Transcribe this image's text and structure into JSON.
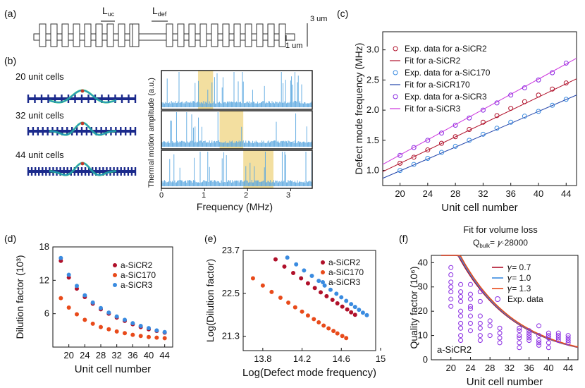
{
  "panels": {
    "a": {
      "label": "(a)",
      "luc": "L",
      "luc_sub": "uc",
      "ldef": "L",
      "ldef_sub": "def",
      "dim_3": "3 um",
      "dim_1": "1 um"
    },
    "b": {
      "label": "(b)",
      "rows": [
        {
          "label": "20 unit cells",
          "band": [
            0.85,
            1.2
          ]
        },
        {
          "label": "32 unit cells",
          "band": [
            1.35,
            1.9
          ]
        },
        {
          "label": "44 unit cells",
          "band": [
            1.9,
            2.6
          ]
        }
      ],
      "ylabel": "Thermal motion amplitude (a.u.)",
      "xlabel": "Frequency (MHz)",
      "xticks": [
        "0",
        "1",
        "2",
        "3"
      ]
    }
  },
  "colors": {
    "sicr2": "#b0102a",
    "sic170": "#e84a1a",
    "sicr3": "#3a8be0",
    "band": "#f3dfa0",
    "noise": "#5aa7e0",
    "vol": "#8a2be2"
  },
  "chart_data": [
    {
      "panel": "(c)",
      "type": "scatter",
      "xlabel": "Unit cell number",
      "ylabel": "Defect mode frequency (MHz)",
      "xlim": [
        17.5,
        45.5
      ],
      "ylim": [
        0.75,
        3.3
      ],
      "xticks": [
        20,
        24,
        28,
        32,
        36,
        40,
        44
      ],
      "yticks": [
        1.0,
        1.5,
        2.0,
        2.5,
        3.0
      ],
      "ytick_labels": [
        "1.0",
        "1.5",
        "2.0",
        "2.5",
        "3.0"
      ],
      "x": [
        20,
        22,
        24,
        26,
        28,
        30,
        32,
        34,
        36,
        38,
        40,
        42,
        44
      ],
      "series": [
        {
          "name": "a-SiCR2",
          "color": "#b0102a",
          "values": [
            1.12,
            1.22,
            1.34,
            1.45,
            1.56,
            1.68,
            1.8,
            1.91,
            2.03,
            2.14,
            2.25,
            2.35,
            2.45
          ]
        },
        {
          "name": "a-SiC170",
          "color": "#3a8be0",
          "values": [
            1.0,
            1.1,
            1.2,
            1.3,
            1.4,
            1.5,
            1.6,
            1.7,
            1.8,
            1.9,
            1.98,
            2.08,
            2.18
          ]
        },
        {
          "name": "a-SiCR3",
          "color": "#8a2be2",
          "values": [
            1.25,
            1.38,
            1.5,
            1.62,
            1.75,
            1.87,
            2.0,
            2.12,
            2.25,
            2.37,
            2.5,
            2.62,
            2.78
          ]
        }
      ],
      "fits": [
        {
          "name": "a-SiCR2",
          "color": "#b0102a",
          "x0": 17.5,
          "y0": 0.98,
          "x1": 45.5,
          "y1": 2.52
        },
        {
          "name": "a-SiC170",
          "color": "#2244aa",
          "x0": 17.5,
          "y0": 0.87,
          "x1": 45.5,
          "y1": 2.25
        },
        {
          "name": "a-SiCR3",
          "color": "#cc33dd",
          "x0": 17.5,
          "y0": 1.1,
          "x1": 45.5,
          "y1": 2.86
        }
      ],
      "legend": [
        "Exp. data for a-SiCR2",
        "Fit for a-SiCR2",
        "Exp. data for a-SiC170",
        "Fit for a-SiCR170",
        "Exp. data for a-SiCR3",
        "Fit for a-SiCR3"
      ]
    },
    {
      "panel": "(d)",
      "type": "scatter",
      "xlabel": "Unit cell number",
      "ylabel": "Dilution factor (10³)",
      "xlim": [
        16,
        46
      ],
      "ylim": [
        0,
        18
      ],
      "xticks": [
        20,
        24,
        28,
        32,
        36,
        40,
        44
      ],
      "yticks": [
        6,
        12,
        18
      ],
      "x": [
        18,
        20,
        22,
        24,
        26,
        28,
        30,
        32,
        34,
        36,
        38,
        40,
        42,
        44
      ],
      "series": [
        {
          "name": "a-SiCR2",
          "color": "#b0102a",
          "values": [
            15.5,
            12.5,
            10.5,
            9.0,
            7.8,
            6.8,
            6.0,
            5.3,
            4.7,
            4.1,
            3.6,
            3.2,
            2.9,
            2.6
          ]
        },
        {
          "name": "a-SiC170",
          "color": "#e84a1a",
          "values": [
            8.8,
            7.1,
            5.9,
            4.9,
            4.2,
            3.6,
            3.2,
            2.8,
            2.5,
            2.2,
            2.0,
            1.8,
            1.7,
            1.6
          ]
        },
        {
          "name": "a-SiCR3",
          "color": "#3a8be0",
          "values": [
            16.0,
            13.0,
            11.0,
            9.3,
            8.0,
            7.0,
            6.2,
            5.5,
            4.9,
            4.3,
            3.8,
            3.4,
            3.0,
            2.7
          ]
        }
      ],
      "legend": [
        "a-SiCR2",
        "a-SiC170",
        "a-SiCR3"
      ]
    },
    {
      "panel": "(e)",
      "type": "scatter",
      "xlabel": "Log(Defect mode frequency)",
      "ylabel": "Log(Dilution factor)",
      "xlim": [
        13.6,
        14.95
      ],
      "ylim": [
        20.9,
        23.7
      ],
      "xticks": [
        13.8,
        14.2,
        14.6,
        15.0
      ],
      "xtick_labels": [
        "13.8",
        "14.2",
        "14.6",
        "15"
      ],
      "yticks": [
        21.3,
        22.5,
        23.7
      ],
      "ytick_labels": [
        "21.3",
        "22.5",
        "23.7"
      ],
      "series": [
        {
          "name": "a-SiCR2",
          "color": "#b0102a",
          "x": [
            13.93,
            14.02,
            14.11,
            14.19,
            14.26,
            14.33,
            14.39,
            14.45,
            14.51,
            14.56,
            14.61,
            14.66,
            14.7,
            14.74
          ],
          "values": [
            23.45,
            23.25,
            23.07,
            22.92,
            22.78,
            22.65,
            22.53,
            22.42,
            22.32,
            22.22,
            22.13,
            22.05,
            21.97,
            21.9
          ]
        },
        {
          "name": "a-SiC170",
          "color": "#e84a1a",
          "x": [
            13.7,
            13.8,
            13.89,
            13.98,
            14.06,
            14.13,
            14.2,
            14.26,
            14.32,
            14.37,
            14.42,
            14.47,
            14.52,
            14.56,
            14.61,
            14.65
          ],
          "values": [
            22.92,
            22.72,
            22.54,
            22.38,
            22.24,
            22.11,
            21.99,
            21.88,
            21.78,
            21.69,
            21.6,
            21.52,
            21.45,
            21.38,
            21.31,
            21.25
          ]
        },
        {
          "name": "a-SiCR3",
          "color": "#3a8be0",
          "x": [
            14.05,
            14.14,
            14.22,
            14.3,
            14.37,
            14.43,
            14.49,
            14.55,
            14.6,
            14.65,
            14.7,
            14.74,
            14.78,
            14.82,
            14.86
          ],
          "values": [
            23.5,
            23.31,
            23.14,
            22.99,
            22.85,
            22.72,
            22.6,
            22.49,
            22.39,
            22.29,
            22.2,
            22.12,
            22.04,
            21.96,
            21.89
          ]
        }
      ],
      "legend": [
        "a-SiCR2",
        "a-SiC170",
        "a-SiCR3"
      ]
    },
    {
      "panel": "(f)",
      "type": "scatter",
      "title": "Fit for volume loss",
      "subtitle_prefix": "Q",
      "subtitle_sub": "bulk",
      "subtitle_rest": "= ",
      "subtitle_gamma": "𝛾",
      "subtitle_tail": "·28000",
      "xlabel": "Unit cell number",
      "ylabel": "Quality factor (10⁶)",
      "xlim": [
        16,
        46
      ],
      "ylim": [
        0,
        43
      ],
      "xticks": [
        20,
        24,
        28,
        32,
        36,
        40,
        44
      ],
      "yticks": [
        0,
        10,
        20,
        30,
        40
      ],
      "inner_label": "a-SiCR2",
      "scatter_color": "#8a2be2",
      "points": [
        {
          "x": 20,
          "ys": [
            38,
            35,
            32,
            30,
            28,
            25,
            22
          ]
        },
        {
          "x": 22,
          "ys": [
            31,
            28,
            26,
            24,
            20,
            18,
            15,
            13,
            10,
            8
          ]
        },
        {
          "x": 24,
          "ys": [
            31,
            27,
            25,
            22,
            21,
            18,
            15,
            12
          ]
        },
        {
          "x": 26,
          "ys": [
            28,
            24,
            18,
            15,
            13,
            10,
            8
          ]
        },
        {
          "x": 28,
          "ys": [
            16,
            14,
            10
          ]
        },
        {
          "x": 30,
          "ys": [
            13,
            11,
            9,
            7
          ]
        },
        {
          "x": 34,
          "ys": [
            13,
            12,
            10,
            9,
            7,
            5
          ]
        },
        {
          "x": 36,
          "ys": [
            12,
            11,
            10,
            9,
            8
          ]
        },
        {
          "x": 38,
          "ys": [
            14,
            10,
            8,
            7,
            6
          ]
        },
        {
          "x": 40,
          "ys": [
            11,
            10,
            9,
            7,
            5
          ]
        },
        {
          "x": 42,
          "ys": [
            11,
            10,
            9,
            8
          ]
        },
        {
          "x": 44,
          "ys": [
            10,
            9,
            8,
            7
          ]
        }
      ],
      "curves": [
        {
          "name": "𝛾= 0.7",
          "color": "#b0102a",
          "scale": 1.0
        },
        {
          "name": "𝛾= 1.0",
          "color": "#3a8be0",
          "scale": 1.02
        },
        {
          "name": "𝛾= 1.3",
          "color": "#e84a1a",
          "scale": 1.04
        }
      ],
      "legend": [
        "𝛾= 0.7",
        "𝛾= 1.0",
        "𝛾= 1.3",
        "Exp. data"
      ]
    }
  ]
}
